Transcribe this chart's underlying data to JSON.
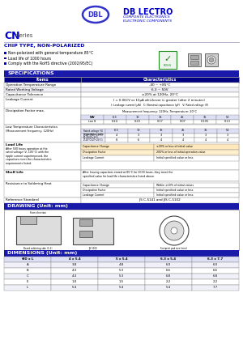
{
  "bg_color": "#FFFFFF",
  "header_blue": "#1a1aaa",
  "dark_blue": "#000080",
  "medium_blue": "#3333aa",
  "light_blue_bg": "#dde0f5",
  "cn_blue": "#0000cc",
  "chip_blue": "#0000aa",
  "logo_ellipse_color": "#3333cc",
  "rohs_green": "#228B22",
  "table_border": "#888888",
  "table_alt": "#f0f0f8",
  "spec_header_bg": "#3a3aaa",
  "orange_highlight": "#f4a020",
  "features": [
    "Non-polarized with general temperature 85°C",
    "Load life of 1000 hours",
    "Comply with the RoHS directive (2002/95/EC)"
  ],
  "spec_rows": [
    [
      "Operation Temperature Range",
      "-40 ~ +85°C"
    ],
    [
      "Rated Working Voltage",
      "6.3 ~ 50V"
    ],
    [
      "Capacitance Tolerance",
      "±20% at 120Hz, 20°C"
    ]
  ],
  "diss_wv": [
    "WV",
    "6.3",
    "10",
    "16",
    "25",
    "35",
    "50"
  ],
  "diss_tan": [
    "tan δ",
    "0.24",
    "0.20",
    "0.17",
    "0.07",
    "0.105",
    "0.13"
  ],
  "lt_volt": [
    "Rated voltage (V)",
    "6.3",
    "10",
    "16",
    "25",
    "35",
    "50"
  ],
  "lt_r1_label": "Z(-25°C)/Z(+20°C)",
  "lt_r1_vals": [
    "4",
    "3",
    "3",
    "3",
    "3",
    "3"
  ],
  "lt_r2_label": "Z(-40°C)/Z(+20°C)",
  "lt_r2_vals": [
    "8",
    "6",
    "4",
    "4",
    "4",
    "4"
  ],
  "load_life_rows": [
    [
      "Capacitance Change",
      "±20% or less of initial value"
    ],
    [
      "Dissipation Factor",
      "200% or less of initial operation value"
    ],
    [
      "Leakage Current",
      "Initial specified value or less"
    ]
  ],
  "shelf_life_text": "After leaving capacitors stored at 85°C for 1000 hours, they meet the specified value for load life characteristics listed above.",
  "solder_rows": [
    [
      "Capacitance Change",
      "Within ±10% of initial values"
    ],
    [
      "Dissipation Factor",
      "Initial specified value or less"
    ],
    [
      "Leakage Current",
      "Initial specified value or less"
    ]
  ],
  "ref_std": "JIS C-5141 and JIS C-5102",
  "dim_headers": [
    "ΦD x L",
    "4 x 5.4",
    "5 x 5.4",
    "6.3 x 5.4",
    "6.3 x 7.7"
  ],
  "dim_rows": [
    [
      "A",
      "3.8",
      "4.8",
      "6.0",
      "6.0"
    ],
    [
      "B",
      "4.3",
      "5.3",
      "6.6",
      "6.6"
    ],
    [
      "C",
      "4.3",
      "5.3",
      "6.8",
      "6.8"
    ],
    [
      "E",
      "1.0",
      "1.5",
      "2.2",
      "2.2"
    ],
    [
      "L",
      "5.4",
      "5.4",
      "5.4",
      "7.7"
    ]
  ]
}
